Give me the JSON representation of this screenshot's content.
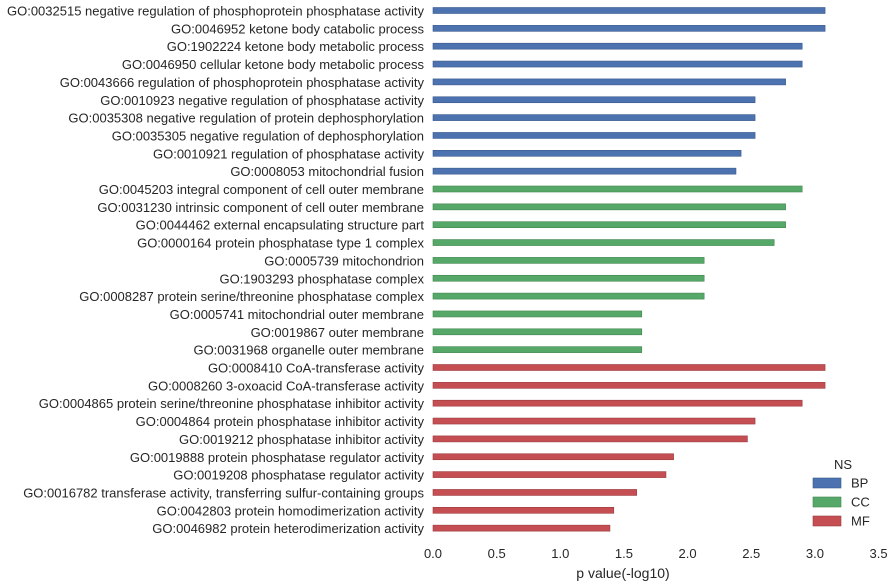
{
  "chart_data": {
    "type": "bar",
    "orientation": "horizontal",
    "xlabel": "p value(-log10)",
    "ylabel": "",
    "xlim": [
      0,
      3.5
    ],
    "xticks": [
      "0.0",
      "0.5",
      "1.0",
      "1.5",
      "2.0",
      "2.5",
      "3.0",
      "3.5"
    ],
    "grid": false,
    "legend": {
      "title": "NS",
      "placement": "lower-right",
      "entries": [
        {
          "name": "BP",
          "color": "#4c72b0"
        },
        {
          "name": "CC",
          "color": "#55a868"
        },
        {
          "name": "MF",
          "color": "#c44e52"
        }
      ]
    },
    "bars": [
      {
        "label": "GO:0032515 negative regulation of phosphoprotein phosphatase activity",
        "value": 3.08,
        "ns": "BP"
      },
      {
        "label": "GO:0046952 ketone body catabolic process",
        "value": 3.08,
        "ns": "BP"
      },
      {
        "label": "GO:1902224 ketone body metabolic process",
        "value": 2.9,
        "ns": "BP"
      },
      {
        "label": "GO:0046950 cellular ketone body metabolic process",
        "value": 2.9,
        "ns": "BP"
      },
      {
        "label": "GO:0043666 regulation of phosphoprotein phosphatase activity",
        "value": 2.77,
        "ns": "BP"
      },
      {
        "label": "GO:0010923 negative regulation of phosphatase activity",
        "value": 2.53,
        "ns": "BP"
      },
      {
        "label": "GO:0035308 negative regulation of protein dephosphorylation",
        "value": 2.53,
        "ns": "BP"
      },
      {
        "label": "GO:0035305 negative regulation of dephosphorylation",
        "value": 2.53,
        "ns": "BP"
      },
      {
        "label": "GO:0010921 regulation of phosphatase activity",
        "value": 2.42,
        "ns": "BP"
      },
      {
        "label": "GO:0008053 mitochondrial fusion",
        "value": 2.38,
        "ns": "BP"
      },
      {
        "label": "GO:0045203 integral component of cell outer membrane",
        "value": 2.9,
        "ns": "CC"
      },
      {
        "label": "GO:0031230 intrinsic component of cell outer membrane",
        "value": 2.77,
        "ns": "CC"
      },
      {
        "label": "GO:0044462 external encapsulating structure part",
        "value": 2.77,
        "ns": "CC"
      },
      {
        "label": "GO:0000164 protein phosphatase type 1 complex",
        "value": 2.68,
        "ns": "CC"
      },
      {
        "label": "GO:0005739 mitochondrion",
        "value": 2.13,
        "ns": "CC"
      },
      {
        "label": "GO:1903293 phosphatase complex",
        "value": 2.13,
        "ns": "CC"
      },
      {
        "label": "GO:0008287 protein serine/threonine phosphatase complex",
        "value": 2.13,
        "ns": "CC"
      },
      {
        "label": "GO:0005741 mitochondrial outer membrane",
        "value": 1.64,
        "ns": "CC"
      },
      {
        "label": "GO:0019867 outer membrane",
        "value": 1.64,
        "ns": "CC"
      },
      {
        "label": "GO:0031968 organelle outer membrane",
        "value": 1.64,
        "ns": "CC"
      },
      {
        "label": "GO:0008410 CoA-transferase activity",
        "value": 3.08,
        "ns": "MF"
      },
      {
        "label": "GO:0008260 3-oxoacid CoA-transferase activity",
        "value": 3.08,
        "ns": "MF"
      },
      {
        "label": "GO:0004865 protein serine/threonine phosphatase inhibitor activity",
        "value": 2.9,
        "ns": "MF"
      },
      {
        "label": "GO:0004864 protein phosphatase inhibitor activity",
        "value": 2.53,
        "ns": "MF"
      },
      {
        "label": "GO:0019212 phosphatase inhibitor activity",
        "value": 2.47,
        "ns": "MF"
      },
      {
        "label": "GO:0019888 protein phosphatase regulator activity",
        "value": 1.89,
        "ns": "MF"
      },
      {
        "label": "GO:0019208 phosphatase regulator activity",
        "value": 1.83,
        "ns": "MF"
      },
      {
        "label": "GO:0016782 transferase activity, transferring sulfur-containing groups",
        "value": 1.6,
        "ns": "MF"
      },
      {
        "label": "GO:0042803 protein homodimerization activity",
        "value": 1.42,
        "ns": "MF"
      },
      {
        "label": "GO:0046982 protein heterodimerization activity",
        "value": 1.39,
        "ns": "MF"
      }
    ]
  }
}
